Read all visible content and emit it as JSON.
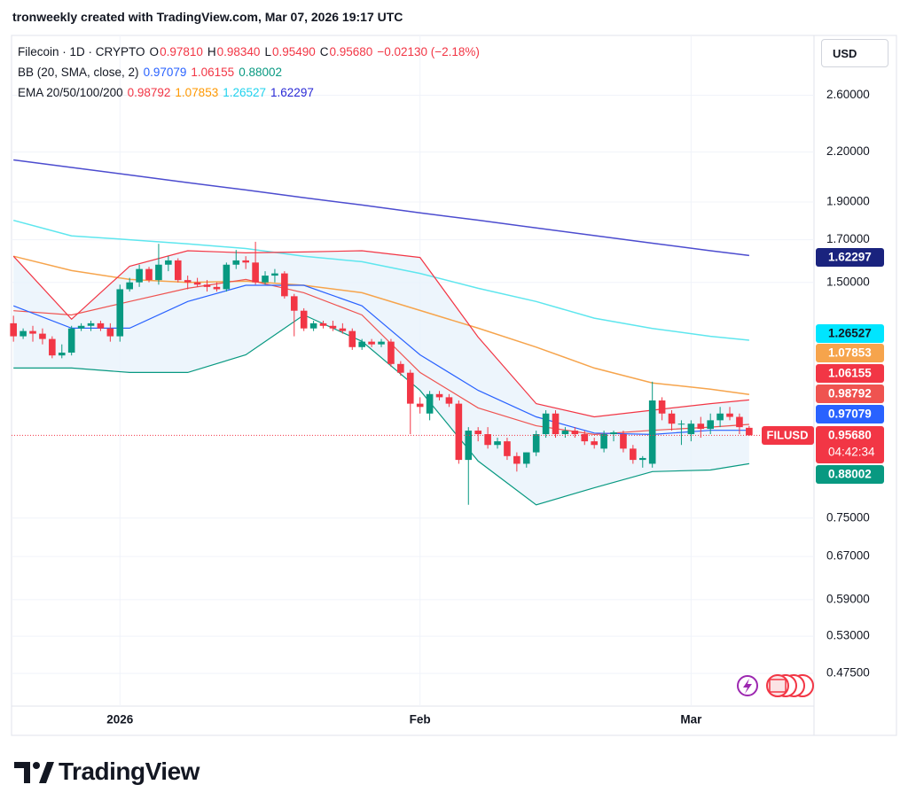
{
  "header": {
    "credit": "tronweekly created with TradingView.com, Mar 07, 2026 19:17 UTC"
  },
  "currency": "USD",
  "brand": "TradingView",
  "legend": {
    "rows": [
      [
        {
          "text": "Filecoin · 1D · CRYPTO",
          "color": "#131722"
        },
        {
          "text": "O",
          "color": "#131722"
        },
        {
          "text": "0.97810",
          "color": "#f23645"
        },
        {
          "text": "H",
          "color": "#131722"
        },
        {
          "text": "0.98340",
          "color": "#f23645"
        },
        {
          "text": "L",
          "color": "#131722"
        },
        {
          "text": "0.95490",
          "color": "#f23645"
        },
        {
          "text": "C",
          "color": "#131722"
        },
        {
          "text": "0.95680",
          "color": "#f23645"
        },
        {
          "text": "−0.02130 (−2.18%)",
          "color": "#f23645"
        }
      ],
      [
        {
          "text": "BB (20, SMA, close, 2)",
          "color": "#131722"
        },
        {
          "text": "0.97079",
          "color": "#2962ff"
        },
        {
          "text": "1.06155",
          "color": "#f23645"
        },
        {
          "text": "0.88002",
          "color": "#089981"
        }
      ],
      [
        {
          "text": "EMA 20/50/100/200",
          "color": "#131722"
        },
        {
          "text": "0.98792",
          "color": "#f23645"
        },
        {
          "text": "1.07853",
          "color": "#ff9800"
        },
        {
          "text": "1.26527",
          "color": "#22d3ee"
        },
        {
          "text": "1.62297",
          "color": "#2a2ad6"
        }
      ]
    ]
  },
  "chart_data": {
    "type": "candlestick",
    "symbol": "FILUSD",
    "price_label": "0.95680",
    "countdown": "04:42:34",
    "up_color": "#089981",
    "down_color": "#f23645",
    "log_scale": true,
    "grid": true,
    "xlim": [
      -0.2,
      82.7
    ],
    "xticks": [
      {
        "value": 11,
        "label": "2026"
      },
      {
        "value": 42,
        "label": "Feb"
      },
      {
        "value": 70,
        "label": "Mar"
      }
    ],
    "ylim": [
      0.396,
      3.1
    ],
    "yticks": [
      {
        "value": 2.6,
        "label": "2.60000"
      },
      {
        "value": 2.2,
        "label": "2.20000"
      },
      {
        "value": 1.9,
        "label": "1.90000"
      },
      {
        "value": 1.7,
        "label": "1.70000"
      },
      {
        "value": 1.5,
        "label": "1.50000"
      },
      {
        "value": 0.75,
        "label": "0.75000"
      },
      {
        "value": 0.67,
        "label": "0.67000"
      },
      {
        "value": 0.59,
        "label": "0.59000"
      },
      {
        "value": 0.53,
        "label": "0.53000"
      },
      {
        "value": 0.475,
        "label": "0.47500"
      }
    ],
    "open": [
      1.33,
      1.28,
      1.3,
      1.29,
      1.27,
      1.21,
      1.22,
      1.31,
      1.32,
      1.33,
      1.31,
      1.28,
      1.47,
      1.5,
      1.56,
      1.51,
      1.58,
      1.6,
      1.51,
      1.5,
      1.49,
      1.48,
      1.47,
      1.58,
      1.6,
      1.59,
      1.5,
      1.53,
      1.54,
      1.44,
      1.38,
      1.31,
      1.33,
      1.32,
      1.31,
      1.3,
      1.24,
      1.26,
      1.25,
      1.26,
      1.18,
      1.15,
      1.05,
      1.02,
      1.08,
      1.07,
      1.05,
      0.89,
      0.97,
      0.96,
      0.93,
      0.94,
      0.9,
      0.88,
      0.91,
      0.96,
      1.02,
      0.96,
      0.97,
      0.96,
      0.94,
      0.92,
      0.96,
      0.96,
      0.92,
      0.89,
      0.88,
      1.06,
      1.02,
      0.99,
      0.96,
      0.99,
      0.975,
      1.0,
      1.02,
      1.01,
      0.9781
    ],
    "high": [
      1.36,
      1.31,
      1.32,
      1.31,
      1.28,
      1.25,
      1.32,
      1.33,
      1.34,
      1.34,
      1.33,
      1.49,
      1.52,
      1.58,
      1.57,
      1.68,
      1.62,
      1.61,
      1.53,
      1.52,
      1.51,
      1.5,
      1.59,
      1.65,
      1.62,
      1.69,
      1.55,
      1.56,
      1.55,
      1.45,
      1.39,
      1.34,
      1.34,
      1.34,
      1.33,
      1.31,
      1.27,
      1.27,
      1.27,
      1.27,
      1.19,
      1.16,
      1.07,
      1.09,
      1.09,
      1.08,
      1.06,
      0.98,
      0.98,
      0.98,
      0.95,
      0.95,
      0.91,
      0.91,
      0.97,
      1.03,
      1.03,
      0.98,
      0.98,
      0.97,
      0.95,
      0.97,
      0.97,
      0.97,
      0.93,
      0.9,
      1.12,
      1.07,
      1.03,
      1.0,
      1.0,
      1.01,
      1.02,
      1.04,
      1.04,
      1.02,
      0.9834
    ],
    "low": [
      1.26,
      1.27,
      1.26,
      1.25,
      1.2,
      1.2,
      1.21,
      1.3,
      1.3,
      1.3,
      1.26,
      1.26,
      1.46,
      1.48,
      1.5,
      1.49,
      1.55,
      1.5,
      1.47,
      1.48,
      1.46,
      1.46,
      1.46,
      1.56,
      1.56,
      1.49,
      1.49,
      1.5,
      1.43,
      1.28,
      1.3,
      1.3,
      1.31,
      1.3,
      1.29,
      1.23,
      1.23,
      1.24,
      1.24,
      1.17,
      1.14,
      0.96,
      1.02,
      1.0,
      1.06,
      1.04,
      0.88,
      0.78,
      0.94,
      0.92,
      0.92,
      0.89,
      0.86,
      0.87,
      0.9,
      0.95,
      0.95,
      0.95,
      0.95,
      0.93,
      0.92,
      0.91,
      0.94,
      0.91,
      0.88,
      0.87,
      0.87,
      1.0,
      0.97,
      0.93,
      0.94,
      0.95,
      0.96,
      0.98,
      1.0,
      0.96,
      0.9549
    ],
    "close": [
      1.28,
      1.3,
      1.29,
      1.27,
      1.21,
      1.22,
      1.31,
      1.32,
      1.33,
      1.31,
      1.28,
      1.47,
      1.5,
      1.56,
      1.51,
      1.58,
      1.6,
      1.51,
      1.5,
      1.49,
      1.48,
      1.47,
      1.58,
      1.6,
      1.59,
      1.5,
      1.53,
      1.54,
      1.44,
      1.38,
      1.31,
      1.33,
      1.32,
      1.31,
      1.3,
      1.24,
      1.26,
      1.25,
      1.26,
      1.18,
      1.15,
      1.05,
      1.04,
      1.08,
      1.07,
      1.05,
      0.89,
      0.97,
      0.96,
      0.93,
      0.94,
      0.9,
      0.88,
      0.91,
      0.96,
      1.02,
      0.96,
      0.97,
      0.96,
      0.94,
      0.93,
      0.96,
      0.965,
      0.92,
      0.89,
      0.895,
      1.06,
      1.02,
      0.99,
      0.99,
      0.99,
      0.975,
      1.0,
      1.02,
      1.01,
      0.98,
      0.9568
    ],
    "band_fill": "#e8f2fb",
    "overlays": [
      {
        "color": "#4c4ccf",
        "width": 1.5,
        "x": [
          0,
          6,
          12,
          18,
          24,
          30,
          36,
          42,
          48,
          54,
          60,
          66,
          72,
          76
        ],
        "values": [
          2.15,
          2.103,
          2.057,
          2.011,
          1.968,
          1.924,
          1.883,
          1.84,
          1.801,
          1.76,
          1.721,
          1.683,
          1.646,
          1.62297
        ]
      },
      {
        "color": "#5ee6ee",
        "width": 1.5,
        "x": [
          0,
          6,
          12,
          18,
          24,
          30,
          36,
          42,
          48,
          54,
          60,
          66,
          72,
          76
        ],
        "values": [
          1.8,
          1.72,
          1.7,
          1.68,
          1.657,
          1.62,
          1.594,
          1.54,
          1.474,
          1.418,
          1.35,
          1.31,
          1.28,
          1.26527
        ]
      },
      {
        "color": "#f6a44c",
        "width": 1.5,
        "x": [
          0,
          6,
          12,
          18,
          24,
          30,
          36,
          42,
          48,
          54,
          60,
          66,
          72,
          76
        ],
        "values": [
          1.62,
          1.553,
          1.513,
          1.5,
          1.505,
          1.487,
          1.455,
          1.381,
          1.311,
          1.24,
          1.166,
          1.116,
          1.096,
          1.07853
        ]
      },
      {
        "color": "#ef5350",
        "width": 1.2,
        "x": [
          0,
          6,
          12,
          18,
          24,
          30,
          36,
          42,
          48,
          54,
          60,
          66,
          72,
          76
        ],
        "values": [
          1.38,
          1.363,
          1.418,
          1.474,
          1.513,
          1.455,
          1.363,
          1.151,
          1.037,
          0.984,
          0.959,
          0.971,
          0.98,
          0.98792
        ]
      },
      {
        "color": "#f23645",
        "width": 1.2,
        "x": [
          0,
          6,
          12,
          18,
          24,
          30,
          36,
          42,
          48,
          54,
          60,
          66,
          72,
          76
        ],
        "values": [
          1.62,
          1.346,
          1.573,
          1.646,
          1.636,
          1.64,
          1.646,
          1.614,
          1.277,
          1.05,
          1.01,
          1.03,
          1.05,
          1.06155
        ]
      },
      {
        "color": "#2962ff",
        "width": 1.2,
        "x": [
          0,
          6,
          12,
          18,
          24,
          30,
          36,
          42,
          48,
          54,
          60,
          66,
          72,
          76
        ],
        "values": [
          1.4,
          1.311,
          1.311,
          1.418,
          1.487,
          1.487,
          1.4,
          1.212,
          1.092,
          1.01,
          0.963,
          0.959,
          0.971,
          0.97079
        ]
      },
      {
        "color": "#089981",
        "width": 1.2,
        "x": [
          0,
          6,
          12,
          18,
          24,
          30,
          36,
          42,
          48,
          54,
          60,
          66,
          72,
          76
        ],
        "values": [
          1.166,
          1.166,
          1.151,
          1.151,
          1.212,
          1.363,
          1.261,
          1.092,
          0.887,
          0.78,
          0.82,
          0.86,
          0.864,
          0.88002
        ]
      }
    ]
  }
}
